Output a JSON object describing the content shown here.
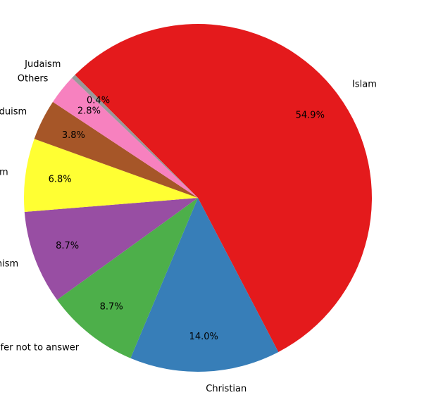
{
  "chart_data": {
    "type": "pie",
    "title": "",
    "start_angle_deg": 135,
    "direction": "clockwise",
    "slices": [
      {
        "label": "Islam",
        "value": 54.9,
        "pct_text": "54.9%",
        "color": "#e41a1c"
      },
      {
        "label": "Christian",
        "value": 14.0,
        "pct_text": "14.0%",
        "color": "#377eb8"
      },
      {
        "label": "Prefer not to answer",
        "value": 8.7,
        "pct_text": "8.7%",
        "color": "#4daf4a"
      },
      {
        "label": "Buddhism",
        "value": 8.7,
        "pct_text": "8.7%",
        "color": "#984ea3"
      },
      {
        "label": "Atheism",
        "value": 6.8,
        "pct_text": "6.8%",
        "color": "#ffff33"
      },
      {
        "label": "Hinduism",
        "value": 3.8,
        "pct_text": "3.8%",
        "color": "#a65628"
      },
      {
        "label": "Others",
        "value": 2.8,
        "pct_text": "2.8%",
        "color": "#f781bf"
      },
      {
        "label": "Judaism",
        "value": 0.4,
        "pct_text": "0.4%",
        "color": "#999999"
      }
    ]
  }
}
